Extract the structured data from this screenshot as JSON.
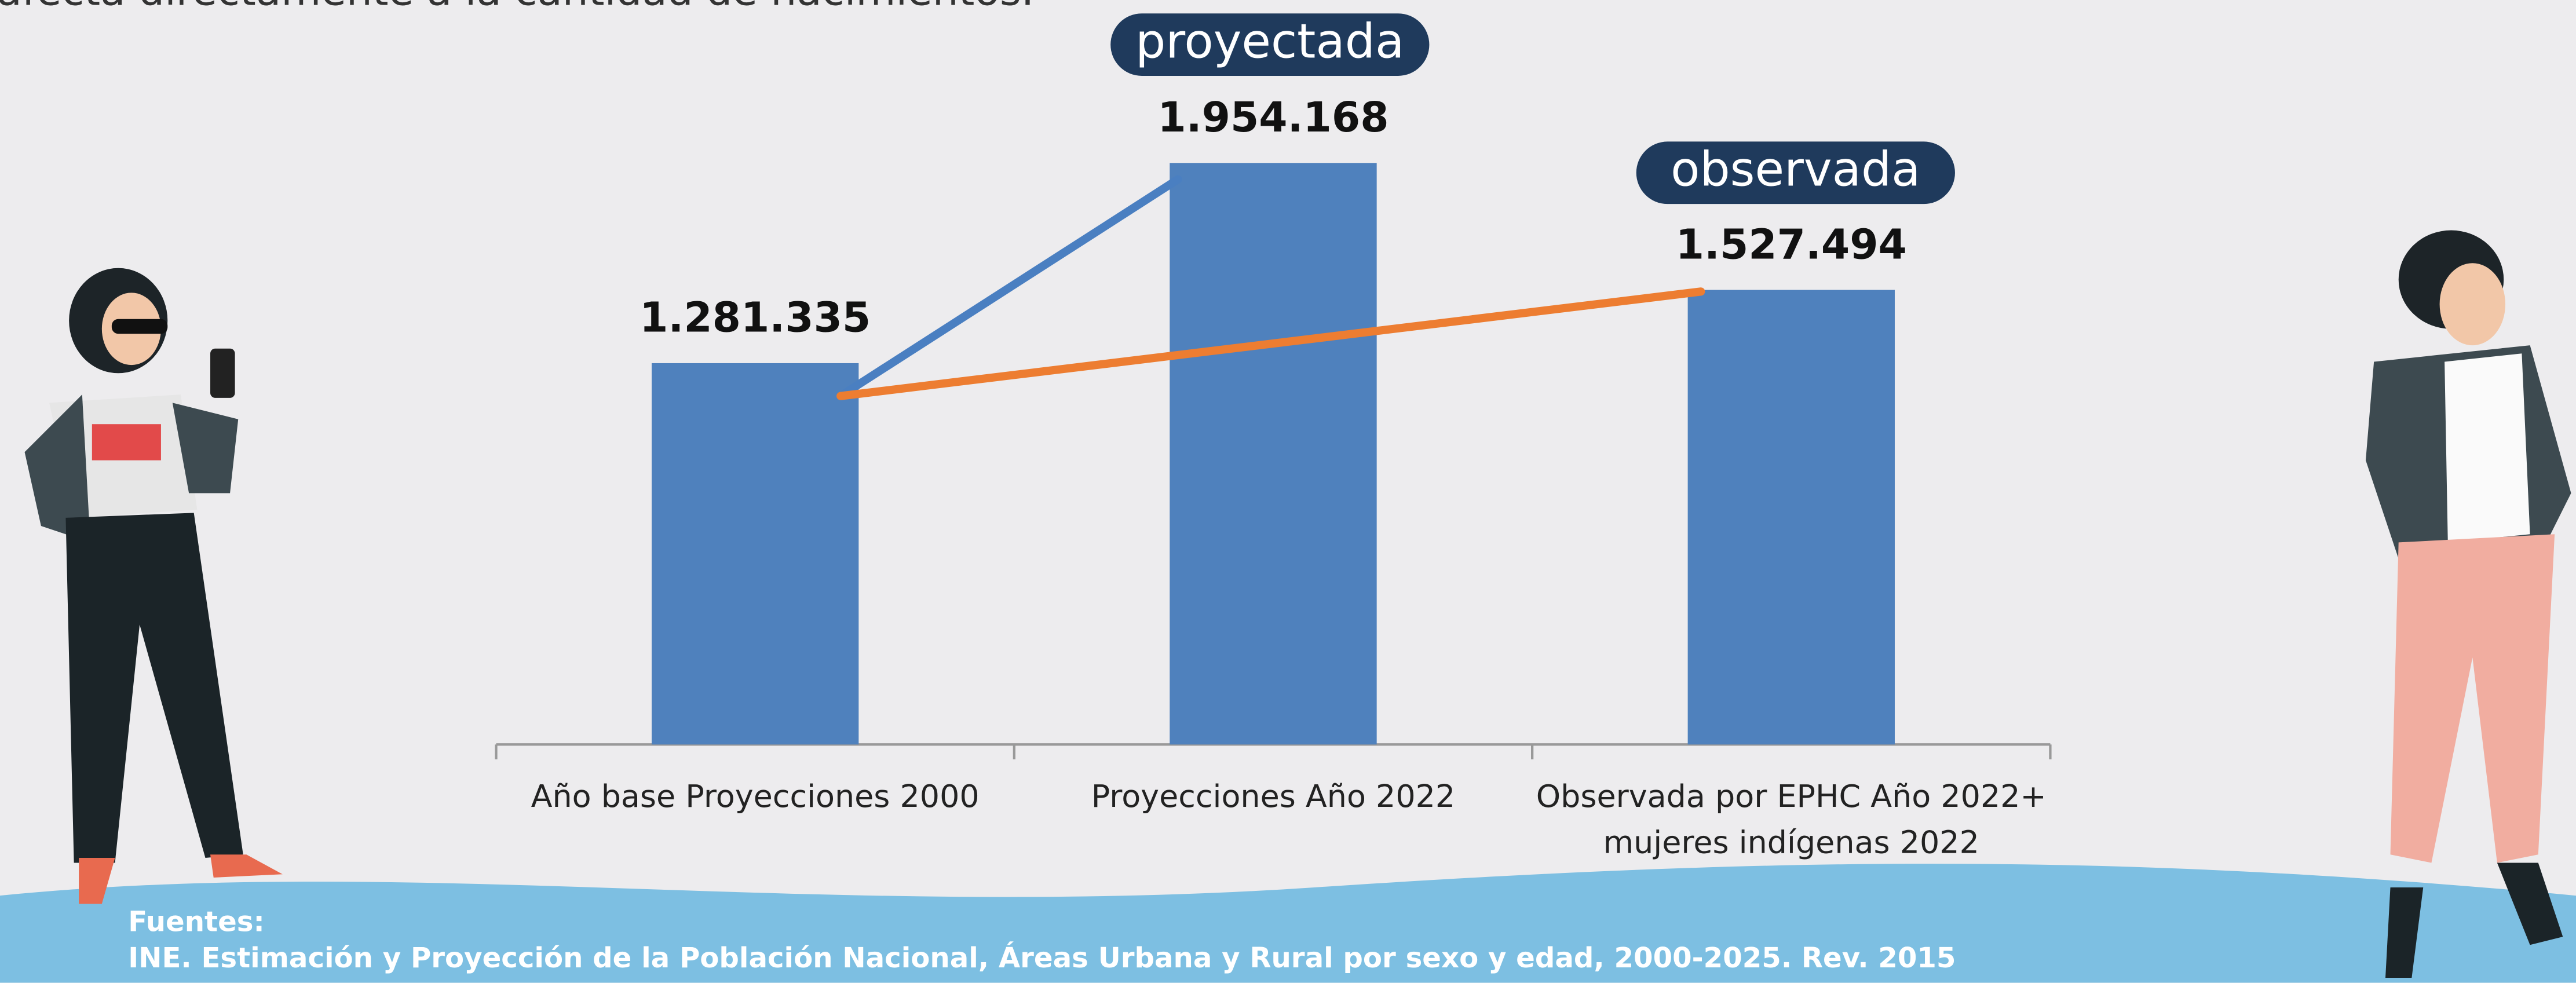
{
  "chart_data": {
    "type": "bar",
    "intro": "afecta directamente a la cantidad de nacimientos.",
    "categories": [
      "Año base Proyecciones 2000",
      "Proyecciones Año 2022",
      "Observada por EPHC Año 2022+ mujeres indígenas 2022"
    ],
    "values": [
      1281335,
      1954168,
      1527494
    ],
    "value_labels": [
      "1.281.335",
      "1.954.168",
      "1.527.494"
    ],
    "color": "#4f81bd",
    "annotations": [
      "proyectada",
      "observada"
    ],
    "source_label": "Fuentes:",
    "source": "INE. Estimación y Proyección de la Población  Nacional, Áreas Urbana y Rural por sexo y  edad, 2000-2025. Rev. 2015"
  }
}
